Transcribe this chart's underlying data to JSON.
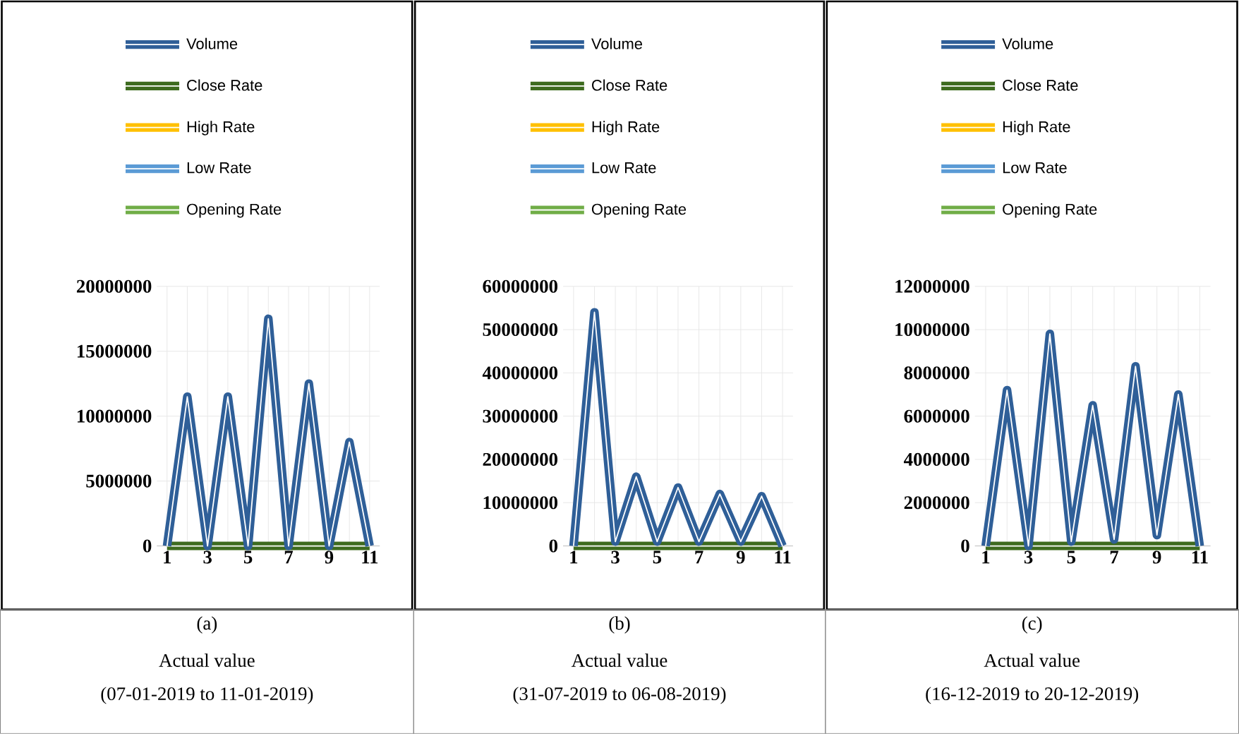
{
  "chart_data": [
    {
      "type": "line",
      "categories": [
        "1",
        null,
        "3",
        null,
        "5",
        null,
        "7",
        null,
        "9",
        null,
        "11"
      ],
      "series": [
        {
          "name": "Volume",
          "color": "#2f5f98",
          "values": [
            0,
            11500000,
            0,
            11500000,
            0,
            17500000,
            0,
            12500000,
            0,
            8000000,
            0
          ]
        },
        {
          "name": "Close Rate",
          "color": "#3e6b1f",
          "values": [
            0,
            0,
            0,
            0,
            0,
            0,
            0,
            0,
            0,
            0,
            0
          ]
        },
        {
          "name": "High Rate",
          "color": "#ffc000",
          "values": [
            null,
            null,
            null,
            null,
            null,
            null,
            null,
            null,
            null,
            null,
            null
          ]
        },
        {
          "name": "Low Rate",
          "color": "#5b9bd5",
          "values": [
            null,
            null,
            null,
            null,
            null,
            null,
            null,
            null,
            null,
            null,
            null
          ]
        },
        {
          "name": "Opening Rate",
          "color": "#70ad47",
          "values": [
            null,
            null,
            null,
            null,
            null,
            null,
            null,
            null,
            null,
            null,
            null
          ]
        }
      ],
      "ylim": [
        0,
        20000000
      ],
      "yticks": [
        0,
        5000000,
        10000000,
        15000000,
        20000000
      ],
      "grid": true,
      "legend": "top",
      "annotations": [
        "(a)",
        "Actual value",
        "(07-01-2019 to 11-01-2019)"
      ]
    },
    {
      "type": "line",
      "categories": [
        "1",
        null,
        "3",
        null,
        "5",
        null,
        "7",
        null,
        "9",
        null,
        "11"
      ],
      "series": [
        {
          "name": "Volume",
          "color": "#2f5f98",
          "values": [
            0,
            54000000,
            1000000,
            16000000,
            1000000,
            13500000,
            1000000,
            12000000,
            1000000,
            11500000,
            0
          ]
        },
        {
          "name": "Close Rate",
          "color": "#3e6b1f",
          "values": [
            0,
            0,
            0,
            0,
            0,
            0,
            0,
            0,
            0,
            0,
            0
          ]
        },
        {
          "name": "High Rate",
          "color": "#ffc000",
          "values": [
            null,
            null,
            null,
            null,
            null,
            null,
            null,
            null,
            null,
            null,
            null
          ]
        },
        {
          "name": "Low Rate",
          "color": "#5b9bd5",
          "values": [
            null,
            null,
            null,
            null,
            null,
            null,
            null,
            null,
            null,
            null,
            null
          ]
        },
        {
          "name": "Opening Rate",
          "color": "#70ad47",
          "values": [
            null,
            null,
            null,
            null,
            null,
            null,
            null,
            null,
            null,
            null,
            null
          ]
        }
      ],
      "ylim": [
        0,
        60000000
      ],
      "yticks": [
        0,
        10000000,
        20000000,
        30000000,
        40000000,
        50000000,
        60000000
      ],
      "grid": true,
      "legend": "top",
      "annotations": [
        "(b)",
        "Actual value",
        "(31-07-2019 to 06-08-2019)"
      ]
    },
    {
      "type": "line",
      "categories": [
        "1",
        null,
        "3",
        null,
        "5",
        null,
        "7",
        null,
        "9",
        null,
        "11"
      ],
      "series": [
        {
          "name": "Volume",
          "color": "#2f5f98",
          "values": [
            0,
            7200000,
            0,
            9800000,
            200000,
            6500000,
            300000,
            8300000,
            500000,
            7000000,
            0
          ]
        },
        {
          "name": "Close Rate",
          "color": "#3e6b1f",
          "values": [
            0,
            0,
            0,
            0,
            0,
            0,
            0,
            0,
            0,
            0,
            0
          ]
        },
        {
          "name": "High Rate",
          "color": "#ffc000",
          "values": [
            null,
            null,
            null,
            null,
            null,
            null,
            null,
            null,
            null,
            null,
            null
          ]
        },
        {
          "name": "Low Rate",
          "color": "#5b9bd5",
          "values": [
            null,
            null,
            null,
            null,
            null,
            null,
            null,
            null,
            null,
            null,
            null
          ]
        },
        {
          "name": "Opening Rate",
          "color": "#70ad47",
          "values": [
            null,
            null,
            null,
            null,
            null,
            null,
            null,
            null,
            null,
            null,
            null
          ]
        }
      ],
      "ylim": [
        0,
        12000000
      ],
      "yticks": [
        0,
        2000000,
        4000000,
        6000000,
        8000000,
        10000000,
        12000000
      ],
      "grid": true,
      "legend": "top",
      "annotations": [
        "(c)",
        "Actual value",
        "(16-12-2019 to 20-12-2019)"
      ]
    }
  ]
}
